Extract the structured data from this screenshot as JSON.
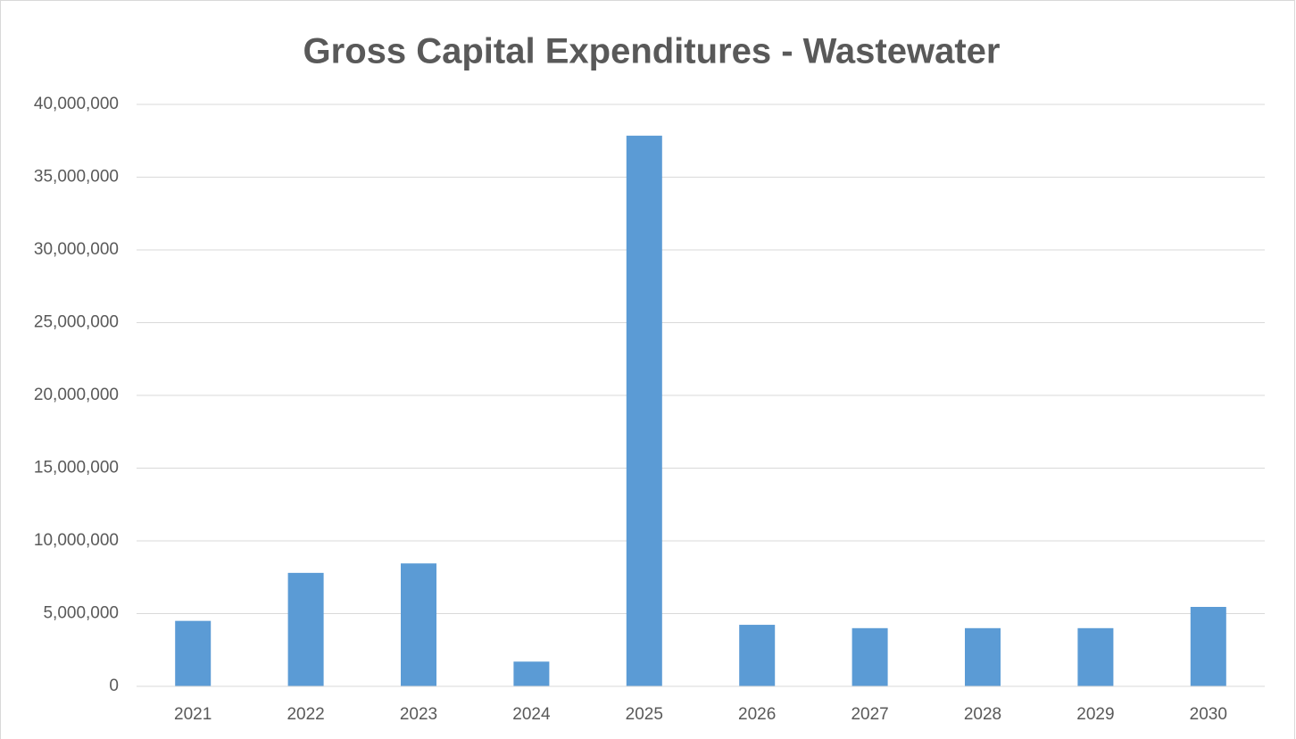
{
  "chart_data": {
    "type": "bar",
    "title": "Gross Capital Expenditures - Wastewater",
    "categories": [
      "2021",
      "2022",
      "2023",
      "2024",
      "2025",
      "2026",
      "2027",
      "2028",
      "2029",
      "2030"
    ],
    "values": [
      4500000,
      7800000,
      8450000,
      1700000,
      37850000,
      4230000,
      4000000,
      4000000,
      4000000,
      5460000
    ],
    "color": "#5b9bd5",
    "ylim": [
      0,
      40000000
    ],
    "yticks": [
      0,
      {
        "value": 5000000,
        "label": "5,000,000"
      },
      {
        "value": 10000000,
        "label": "10,000,000"
      },
      {
        "value": 15000000,
        "label": "15,000,000"
      },
      {
        "value": 20000000,
        "label": "20,000,000"
      },
      {
        "value": 25000000,
        "label": "25,000,000"
      },
      {
        "value": 30000000,
        "label": "30,000,000"
      },
      {
        "value": 35000000,
        "label": "35,000,000"
      },
      {
        "value": 40000000,
        "label": "40,000,000"
      }
    ],
    "grid": true
  }
}
